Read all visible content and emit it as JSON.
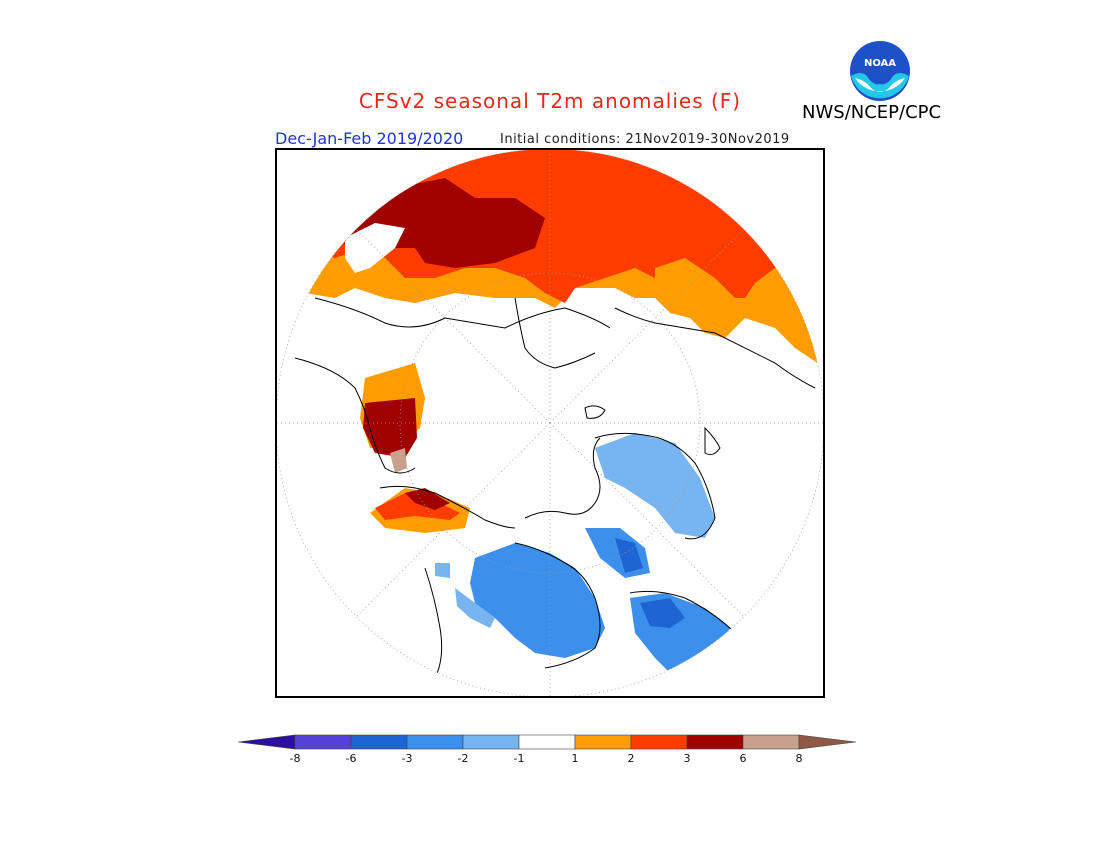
{
  "header": {
    "title": "CFSv2 seasonal T2m anomalies (F)",
    "agency": "NWS/NCEP/CPC",
    "logo_text": "NOAA",
    "season": "Dec-Jan-Feb 2019/2020",
    "initial_conditions": "Initial conditions: 21Nov2019-30Nov2019"
  },
  "map": {
    "projection": "north-polar-stereographic",
    "domain": "Northern Hemisphere"
  },
  "legend": {
    "units": "F",
    "bins": [
      {
        "range": "< -8",
        "color": "#2a0fa0"
      },
      {
        "range": "-8 to -6",
        "color": "#5540d8"
      },
      {
        "range": "-6 to -3",
        "color": "#1e64d2"
      },
      {
        "range": "-3 to -2",
        "color": "#3c90eb"
      },
      {
        "range": "-2 to -1",
        "color": "#78b4f0"
      },
      {
        "range": "-1 to 1",
        "color": "#ffffff"
      },
      {
        "range": "1 to 2",
        "color": "#ff9c00"
      },
      {
        "range": "2 to 3",
        "color": "#ff3c00"
      },
      {
        "range": "3 to 6",
        "color": "#a00000"
      },
      {
        "range": "6 to 8",
        "color": "#c8a08c"
      },
      {
        "range": "> 8",
        "color": "#8c5a46"
      }
    ],
    "tick_labels": [
      "-8",
      "-6",
      "-3",
      "-2",
      "-1",
      "1",
      "2",
      "3",
      "6",
      "8"
    ]
  },
  "colors": {
    "title": "#e8271c",
    "season": "#1d35d8",
    "noaa_blue": "#1e50c8",
    "noaa_cyan": "#22c8e6"
  }
}
